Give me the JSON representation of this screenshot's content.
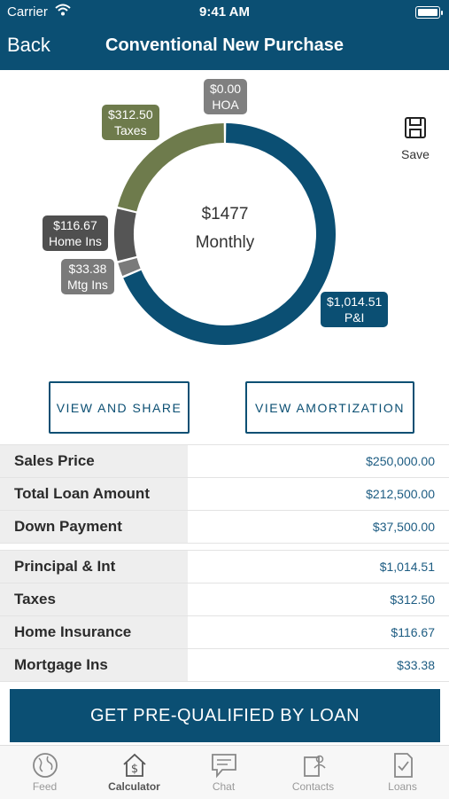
{
  "status": {
    "carrier": "Carrier",
    "time": "9:41 AM"
  },
  "nav": {
    "back_label": "Back",
    "title": "Conventional New Purchase"
  },
  "summary": {
    "amount": "$1477",
    "label": "Monthly"
  },
  "chart_data": {
    "type": "pie",
    "categories": [
      "P&I",
      "Mtg Ins",
      "Home Ins",
      "Taxes",
      "HOA"
    ],
    "values": [
      1014.51,
      33.38,
      116.67,
      312.5,
      0.0
    ],
    "labels": [
      "$1,014.51",
      "$33.38",
      "$116.67",
      "$312.50",
      "$0.00"
    ],
    "colors": [
      "#0b4f73",
      "#7a7a7a",
      "#555555",
      "#6e7b4c",
      "#808080"
    ]
  },
  "save_label": "Save",
  "buttons": {
    "view_share": "VIEW AND SHARE",
    "view_amortization": "VIEW AMORTIZATION"
  },
  "loan_table": [
    {
      "label": "Sales Price",
      "value": "$250,000.00"
    },
    {
      "label": "Total Loan Amount",
      "value": "$212,500.00"
    },
    {
      "label": "Down Payment",
      "value": "$37,500.00"
    }
  ],
  "payment_table": [
    {
      "label": "Principal & Int",
      "value": "$1,014.51"
    },
    {
      "label": "Taxes",
      "value": "$312.50"
    },
    {
      "label": "Home Insurance",
      "value": "$116.67"
    },
    {
      "label": "Mortgage Ins",
      "value": "$33.38"
    }
  ],
  "cta_label": "GET PRE-QUALIFIED BY LOAN",
  "tabs": [
    {
      "label": "Feed",
      "icon": "globe-icon"
    },
    {
      "label": "Calculator",
      "icon": "house-dollar-icon"
    },
    {
      "label": "Chat",
      "icon": "chat-bubble-icon"
    },
    {
      "label": "Contacts",
      "icon": "contacts-icon"
    },
    {
      "label": "Loans",
      "icon": "document-check-icon"
    }
  ]
}
